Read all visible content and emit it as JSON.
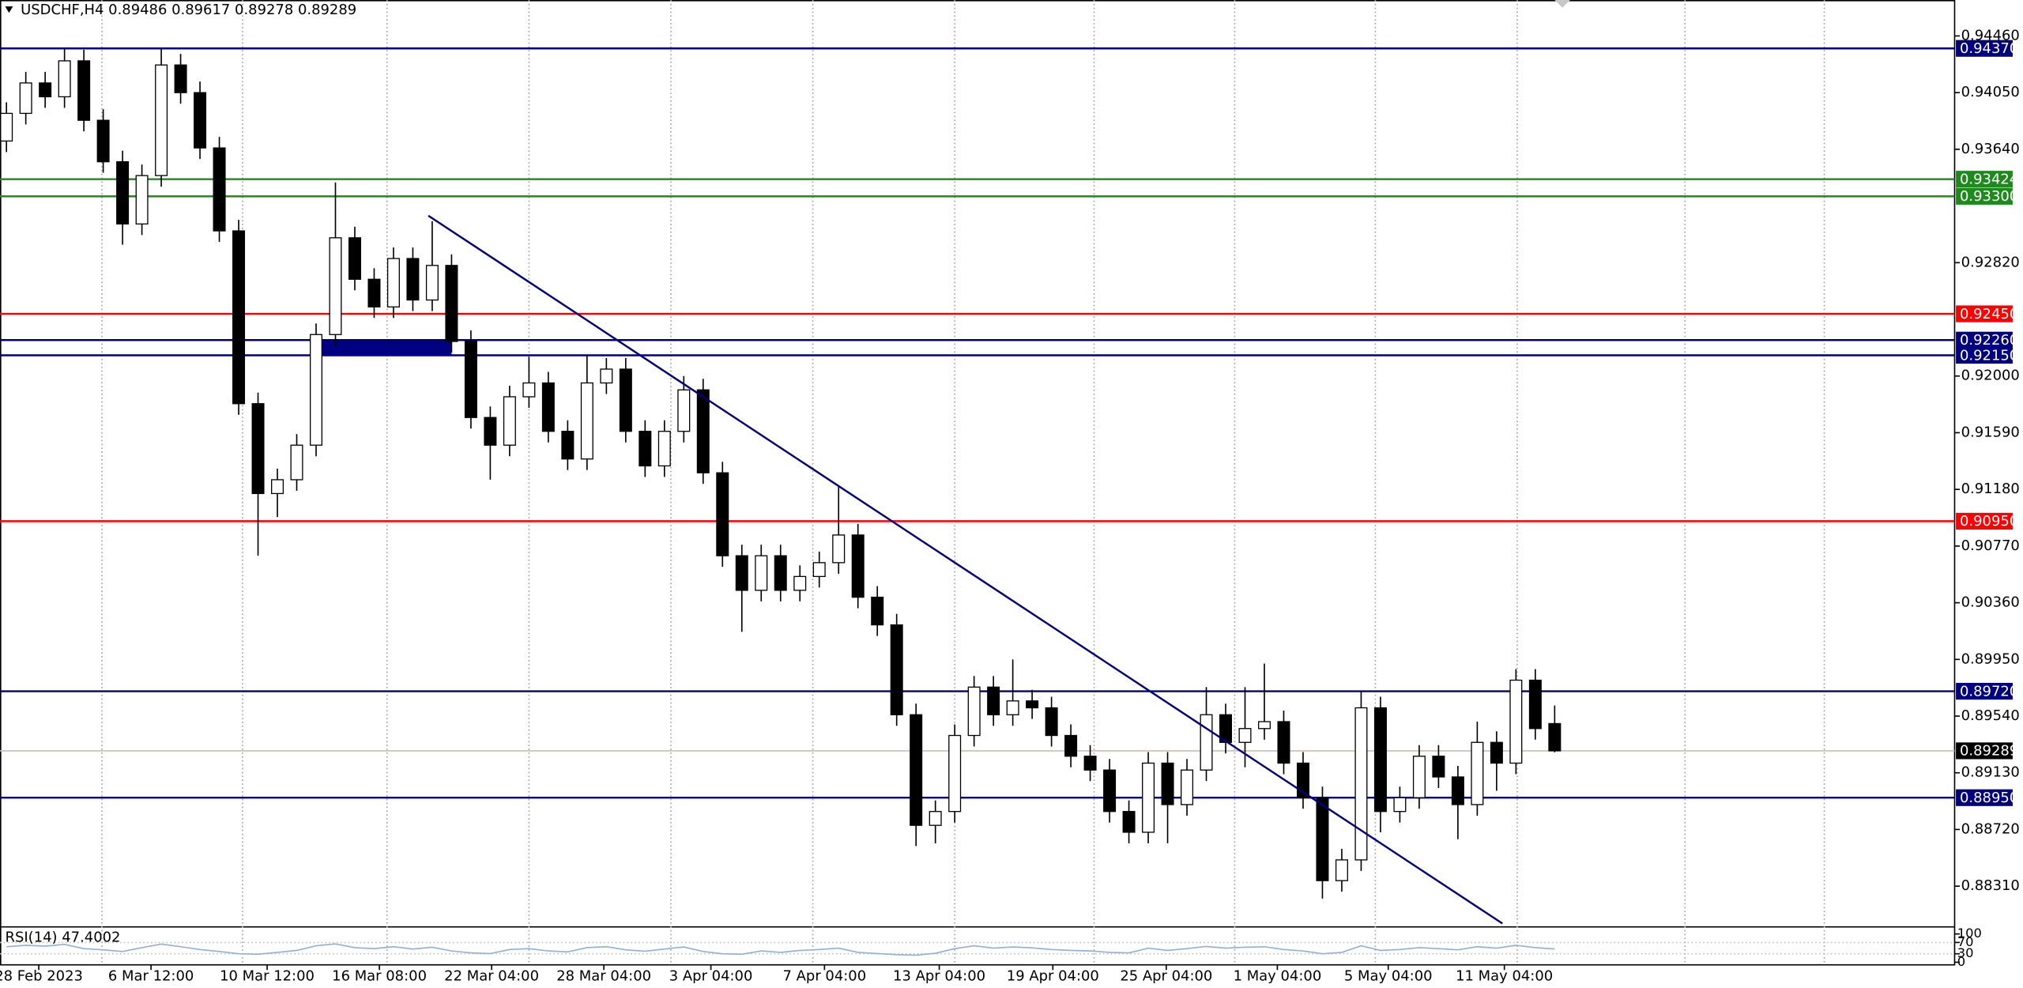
{
  "chart_data": {
    "type": "candlestick",
    "title": "USDCHF,H4  0.89486 0.89617 0.89278 0.89289",
    "xlim": [
      -0.3333,
      100.6667
    ],
    "ylim": [
      0.8802,
      0.9472
    ],
    "yticks": [
      {
        "value": 0.9446,
        "label": "0.94460"
      },
      {
        "value": 0.9405,
        "label": "0.94050"
      },
      {
        "value": 0.9364,
        "label": "0.93640"
      },
      {
        "value": 0.9282,
        "label": "0.92820"
      },
      {
        "value": 0.92,
        "label": "0.92000"
      },
      {
        "value": 0.9159,
        "label": "0.91590"
      },
      {
        "value": 0.9118,
        "label": "0.91180"
      },
      {
        "value": 0.9077,
        "label": "0.90770"
      },
      {
        "value": 0.9036,
        "label": "0.90360"
      },
      {
        "value": 0.8995,
        "label": "0.89950"
      },
      {
        "value": 0.8954,
        "label": "0.89540"
      },
      {
        "value": 0.8913,
        "label": "0.89130"
      },
      {
        "value": 0.8872,
        "label": "0.88720"
      },
      {
        "value": 0.8831,
        "label": "0.88310"
      }
    ],
    "xlabels": [
      {
        "value": 1.67,
        "label": "28 Feb 2023"
      },
      {
        "value": 7.47,
        "label": "6 Mar 12:00"
      },
      {
        "value": 13.47,
        "label": "10 Mar 12:00"
      },
      {
        "value": 19.27,
        "label": "16 Mar 08:00"
      },
      {
        "value": 25.07,
        "label": "22 Mar 04:00"
      },
      {
        "value": 30.87,
        "label": "28 Mar 04:00"
      },
      {
        "value": 36.4,
        "label": "3 Apr 04:00"
      },
      {
        "value": 42.27,
        "label": "7 Apr 04:00"
      },
      {
        "value": 48.2,
        "label": "13 Apr 04:00"
      },
      {
        "value": 54.07,
        "label": "19 Apr 04:00"
      },
      {
        "value": 59.93,
        "label": "25 Apr 04:00"
      },
      {
        "value": 65.67,
        "label": "1 May 04:00"
      },
      {
        "value": 71.4,
        "label": "5 May 04:00"
      },
      {
        "value": 77.4,
        "label": "11 May 04:00"
      }
    ],
    "up_color": "#ffffff",
    "down_color": "#000000",
    "ohlc": [
      [
        0.937,
        0.9398,
        0.9362,
        0.939
      ],
      [
        0.939,
        0.942,
        0.9382,
        0.9412
      ],
      [
        0.9412,
        0.942,
        0.9394,
        0.9402
      ],
      [
        0.9402,
        0.9437,
        0.9394,
        0.9428
      ],
      [
        0.9428,
        0.9436,
        0.9377,
        0.9385
      ],
      [
        0.9385,
        0.9393,
        0.9347,
        0.9355
      ],
      [
        0.9355,
        0.9363,
        0.9295,
        0.931
      ],
      [
        0.931,
        0.9353,
        0.9302,
        0.9345
      ],
      [
        0.9345,
        0.9437,
        0.9337,
        0.9425
      ],
      [
        0.9425,
        0.9433,
        0.9397,
        0.9405
      ],
      [
        0.9405,
        0.9413,
        0.9357,
        0.9365
      ],
      [
        0.9365,
        0.9373,
        0.9297,
        0.9305
      ],
      [
        0.9305,
        0.9313,
        0.9172,
        0.918
      ],
      [
        0.918,
        0.9188,
        0.907,
        0.9115
      ],
      [
        0.9115,
        0.9133,
        0.9098,
        0.9125
      ],
      [
        0.9125,
        0.9158,
        0.9117,
        0.915
      ],
      [
        0.915,
        0.9238,
        0.9142,
        0.923
      ],
      [
        0.923,
        0.934,
        0.9222,
        0.93
      ],
      [
        0.93,
        0.9308,
        0.9262,
        0.927
      ],
      [
        0.927,
        0.9278,
        0.9242,
        0.925
      ],
      [
        0.925,
        0.9293,
        0.9242,
        0.9285
      ],
      [
        0.9285,
        0.9293,
        0.9247,
        0.9255
      ],
      [
        0.9255,
        0.9312,
        0.9247,
        0.928
      ],
      [
        0.928,
        0.9288,
        0.9217,
        0.9225
      ],
      [
        0.9225,
        0.9233,
        0.9162,
        0.917
      ],
      [
        0.917,
        0.9178,
        0.9125,
        0.915
      ],
      [
        0.915,
        0.9193,
        0.9142,
        0.9185
      ],
      [
        0.9185,
        0.9214,
        0.9177,
        0.9195
      ],
      [
        0.9195,
        0.9203,
        0.9152,
        0.916
      ],
      [
        0.916,
        0.9168,
        0.9132,
        0.914
      ],
      [
        0.914,
        0.9215,
        0.9132,
        0.9195
      ],
      [
        0.9195,
        0.9213,
        0.9187,
        0.9205
      ],
      [
        0.9205,
        0.9213,
        0.9152,
        0.916
      ],
      [
        0.916,
        0.9168,
        0.9127,
        0.9135
      ],
      [
        0.9135,
        0.9168,
        0.9127,
        0.916
      ],
      [
        0.916,
        0.92,
        0.9152,
        0.919
      ],
      [
        0.919,
        0.9198,
        0.9122,
        0.913
      ],
      [
        0.913,
        0.9138,
        0.9062,
        0.907
      ],
      [
        0.907,
        0.9078,
        0.9015,
        0.9045
      ],
      [
        0.9045,
        0.9078,
        0.9037,
        0.907
      ],
      [
        0.907,
        0.9078,
        0.9037,
        0.9045
      ],
      [
        0.9045,
        0.9063,
        0.9037,
        0.9055
      ],
      [
        0.9055,
        0.9073,
        0.9047,
        0.9065
      ],
      [
        0.9065,
        0.912,
        0.9057,
        0.9085
      ],
      [
        0.9085,
        0.9093,
        0.9032,
        0.904
      ],
      [
        0.904,
        0.9048,
        0.9012,
        0.902
      ],
      [
        0.902,
        0.9028,
        0.8947,
        0.8955
      ],
      [
        0.8955,
        0.8963,
        0.886,
        0.8875
      ],
      [
        0.8875,
        0.8893,
        0.8862,
        0.8885
      ],
      [
        0.8885,
        0.8948,
        0.8877,
        0.894
      ],
      [
        0.894,
        0.8983,
        0.8932,
        0.8975
      ],
      [
        0.8975,
        0.8983,
        0.8947,
        0.8955
      ],
      [
        0.8955,
        0.8995,
        0.8947,
        0.8965
      ],
      [
        0.8965,
        0.8973,
        0.8952,
        0.896
      ],
      [
        0.896,
        0.8968,
        0.8932,
        0.894
      ],
      [
        0.894,
        0.8948,
        0.8917,
        0.8925
      ],
      [
        0.8925,
        0.8933,
        0.8907,
        0.8915
      ],
      [
        0.8915,
        0.8923,
        0.8877,
        0.8885
      ],
      [
        0.8885,
        0.8893,
        0.8862,
        0.887
      ],
      [
        0.887,
        0.8928,
        0.8862,
        0.892
      ],
      [
        0.892,
        0.8928,
        0.8862,
        0.889
      ],
      [
        0.889,
        0.8923,
        0.8882,
        0.8915
      ],
      [
        0.8915,
        0.8975,
        0.8907,
        0.8955
      ],
      [
        0.8955,
        0.8963,
        0.8927,
        0.8935
      ],
      [
        0.8935,
        0.8975,
        0.8917,
        0.8945
      ],
      [
        0.8945,
        0.8992,
        0.8937,
        0.895
      ],
      [
        0.895,
        0.8958,
        0.8912,
        0.892
      ],
      [
        0.892,
        0.8928,
        0.8887,
        0.8895
      ],
      [
        0.8895,
        0.8903,
        0.8822,
        0.8835
      ],
      [
        0.8835,
        0.8858,
        0.8827,
        0.885
      ],
      [
        0.885,
        0.8972,
        0.8842,
        0.896
      ],
      [
        0.896,
        0.8968,
        0.887,
        0.8885
      ],
      [
        0.8885,
        0.8903,
        0.8877,
        0.8895
      ],
      [
        0.8895,
        0.8933,
        0.8887,
        0.8925
      ],
      [
        0.8925,
        0.8933,
        0.8902,
        0.891
      ],
      [
        0.891,
        0.8918,
        0.8865,
        0.889
      ],
      [
        0.889,
        0.895,
        0.8882,
        0.8935
      ],
      [
        0.8935,
        0.8943,
        0.89,
        0.892
      ],
      [
        0.892,
        0.8988,
        0.8912,
        0.898
      ],
      [
        0.898,
        0.8988,
        0.8937,
        0.8945
      ],
      [
        0.89486,
        0.89617,
        0.89278,
        0.89289
      ]
    ],
    "levels": [
      {
        "value": 0.9437,
        "label": "0.94370",
        "color": "#000080"
      },
      {
        "value": 0.93424,
        "color": "#1e8a1e"
      },
      {
        "value": 0.933,
        "label": "0.93300",
        "color": "#1e8a1e"
      },
      {
        "value": 0.9245,
        "label": "0.92450",
        "color": "#ff0000"
      },
      {
        "value": 0.9226,
        "label": "0.92260",
        "color": "#000080"
      },
      {
        "value": 0.9215,
        "label": "0.92150",
        "color": "#000080"
      },
      {
        "value": 0.9095,
        "label": "0.90950",
        "color": "#ff0000"
      },
      {
        "value": 0.8972,
        "label": "0.89720",
        "color": "#000080"
      },
      {
        "value": 0.8895,
        "label": "0.88950",
        "color": "#000080"
      }
    ],
    "price": {
      "value": 0.89289,
      "color": "#d8b8b0",
      "label_color": "#000000"
    },
    "zone": {
      "x": [
        16,
        23
      ],
      "y": [
        0.9226,
        0.9215
      ],
      "color": "#000080"
    },
    "trendline": {
      "x": [
        21.8,
        77.3
      ],
      "y": [
        0.9316,
        0.8804
      ],
      "color": "#000080"
    },
    "rsi": {
      "label": "RSI(14) 47.4002",
      "ylim": [
        0,
        100
      ],
      "yticks": [
        100,
        70,
        30,
        0
      ],
      "color": "#8fb0dd",
      "values": [
        55,
        60,
        57,
        63,
        48,
        44,
        38,
        52,
        64,
        55,
        45,
        38,
        30,
        28,
        35,
        42,
        58,
        65,
        52,
        48,
        55,
        47,
        53,
        40,
        33,
        31,
        45,
        48,
        40,
        37,
        52,
        55,
        44,
        39,
        47,
        54,
        38,
        30,
        28,
        40,
        35,
        42,
        45,
        50,
        35,
        31,
        27,
        25,
        32,
        48,
        58,
        50,
        54,
        51,
        45,
        42,
        40,
        35,
        33,
        50,
        42,
        48,
        56,
        50,
        53,
        55,
        45,
        40,
        30,
        35,
        58,
        42,
        45,
        52,
        48,
        44,
        55,
        50,
        60,
        52,
        47.4002
      ]
    }
  }
}
